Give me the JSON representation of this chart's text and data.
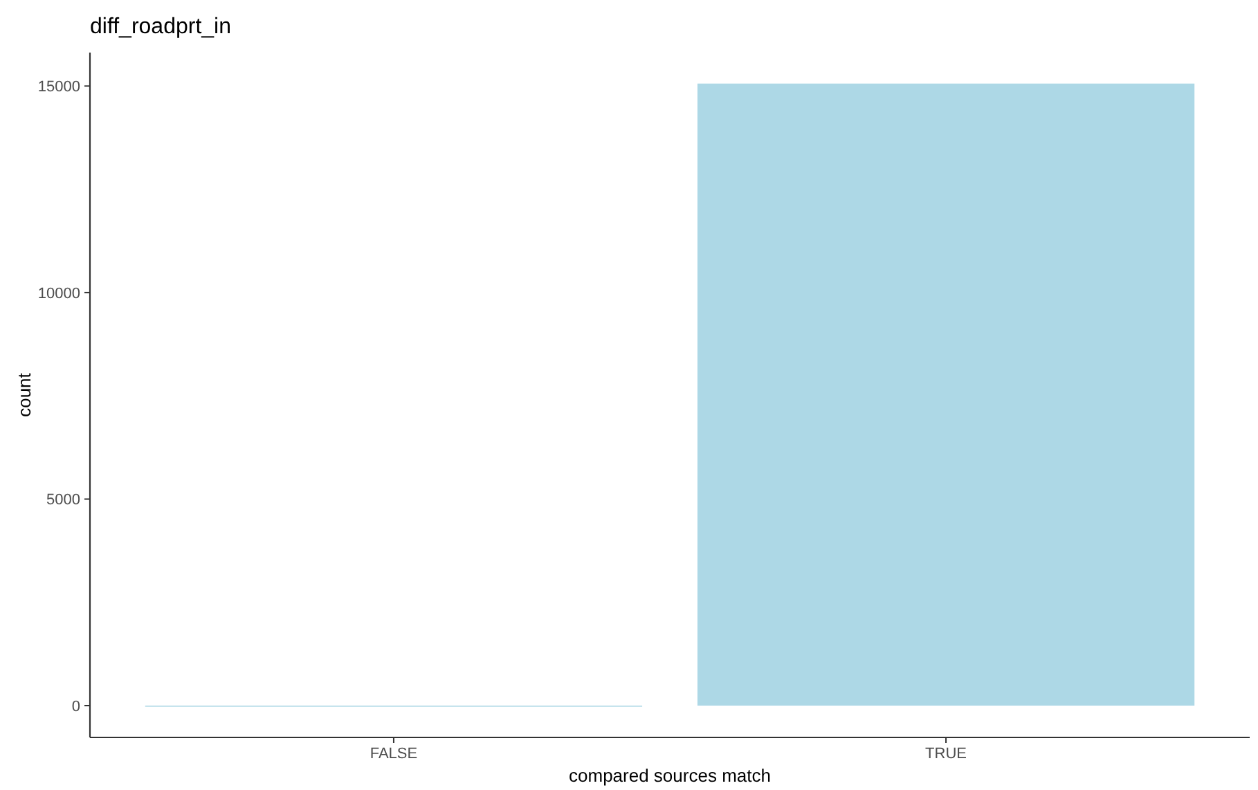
{
  "chart_data": {
    "type": "bar",
    "title": "diff_roadprt_in",
    "xlabel": "compared sources match",
    "ylabel": "count",
    "categories": [
      "FALSE",
      "TRUE"
    ],
    "values": [
      0,
      15060
    ],
    "color": "#add8e6",
    "ylim": [
      -770,
      15810
    ],
    "yticks": [
      0,
      5000,
      10000,
      15000
    ],
    "grid": false
  }
}
